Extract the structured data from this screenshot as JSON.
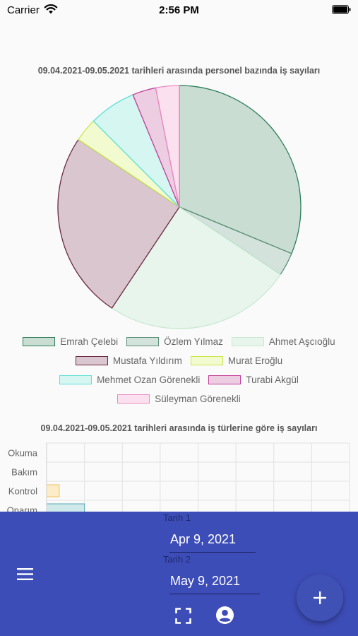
{
  "status_bar": {
    "carrier": "Carrier",
    "time": "2:56 PM",
    "icons": [
      "wifi-icon",
      "battery-icon"
    ]
  },
  "pie_chart": {
    "title": "09.04.2021-09.05.2021 tarihleri arasında personel bazında iş sayıları"
  },
  "bar_chart": {
    "title": "09.04.2021-09.05.2021 tarihleri arasında iş türlerine göre iş sayıları"
  },
  "chart_data": [
    {
      "type": "pie",
      "title": "09.04.2021-09.05.2021 tarihleri arasında personel bazında iş sayıları",
      "legend_position": "bottom",
      "slices": [
        {
          "name": "Emrah Çelebi",
          "value": 10,
          "fill": "#c9ddd2",
          "stroke": "#2e7d5b"
        },
        {
          "name": "Özlem Yılmaz",
          "value": 1,
          "fill": "#d3e3dc",
          "stroke": "#5a8f76"
        },
        {
          "name": "Ahmet Aşcıoğlu",
          "value": 8,
          "fill": "#e8f5ec",
          "stroke": "#c8e8d2"
        },
        {
          "name": "Mustafa Yıldırım",
          "value": 8,
          "fill": "#d9c6cf",
          "stroke": "#6b2840"
        },
        {
          "name": "Murat Eroğlu",
          "value": 1,
          "fill": "#f2fbd0",
          "stroke": "#c9e84a"
        },
        {
          "name": "Mehmet Ozan Görenekli",
          "value": 2,
          "fill": "#d6f6f2",
          "stroke": "#5fe0d8"
        },
        {
          "name": "Turabi Akgül",
          "value": 1,
          "fill": "#eccde2",
          "stroke": "#c2409a"
        },
        {
          "name": "Süleyman Görenekli",
          "value": 1,
          "fill": "#fbe1ef",
          "stroke": "#e98ac0"
        }
      ]
    },
    {
      "type": "bar",
      "orientation": "horizontal",
      "title": "09.04.2021-09.05.2021 tarihleri arasında iş türlerine göre iş sayıları",
      "categories": [
        "Okuma",
        "Bakım",
        "Kontrol",
        "Onarım"
      ],
      "values": [
        0,
        0,
        1,
        3
      ],
      "xlim": [
        0,
        24
      ],
      "grid": true,
      "colors": [
        {
          "fill": "#dfe8f7",
          "stroke": "#7a96cc"
        },
        {
          "fill": "#f0e0e6",
          "stroke": "#b06a84"
        },
        {
          "fill": "#fcecc7",
          "stroke": "#f0c060"
        },
        {
          "fill": "#cfe8ea",
          "stroke": "#5aa8b0"
        }
      ]
    }
  ],
  "bottom_panel": {
    "date1_label": "Tarih 1",
    "date1_value": "Apr 9, 2021",
    "date2_label": "Tarih 2",
    "date2_value": "May 9, 2021",
    "icons": [
      "menu-icon",
      "fullscreen-icon",
      "account-icon",
      "plus-icon"
    ],
    "colors": {
      "panel": "#3d4db7",
      "fab": "#3f51b5"
    }
  }
}
